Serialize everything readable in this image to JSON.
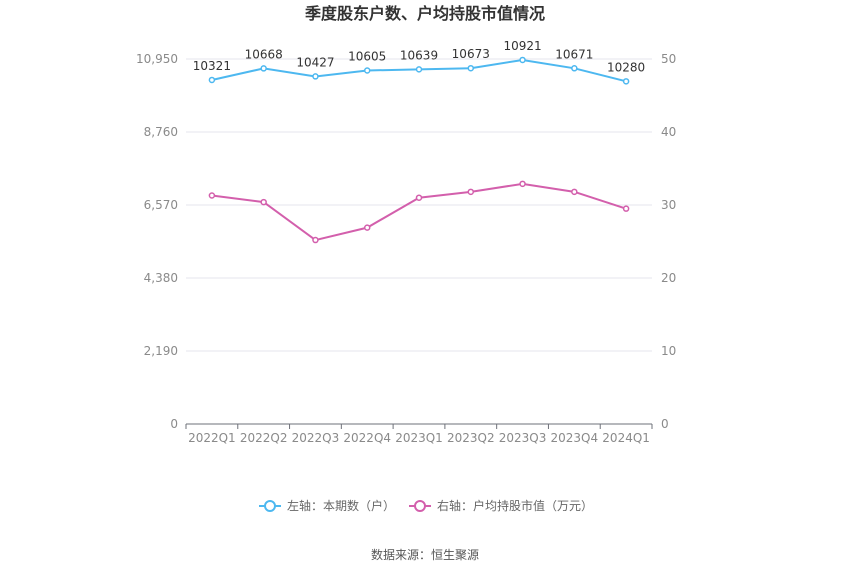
{
  "chart_data": {
    "type": "line",
    "title": "季度股东户数、户均持股市值情况",
    "categories": [
      "2022Q1",
      "2022Q2",
      "2022Q3",
      "2022Q4",
      "2023Q1",
      "2023Q2",
      "2023Q3",
      "2023Q4",
      "2024Q1"
    ],
    "left_axis": {
      "ticks": [
        "0",
        "2,190",
        "4,380",
        "6,570",
        "8,760",
        "10,950"
      ],
      "ylim": [
        0,
        10950
      ]
    },
    "right_axis": {
      "ticks": [
        "0",
        "10",
        "20",
        "30",
        "40",
        "50"
      ],
      "ylim": [
        0,
        50
      ]
    },
    "series": [
      {
        "name": "左轴：本期数（户）",
        "axis": "left",
        "color": "#4db8f0",
        "values": [
          10321,
          10668,
          10427,
          10605,
          10639,
          10673,
          10921,
          10671,
          10280
        ],
        "labels": [
          "10321",
          "10668",
          "10427",
          "10605",
          "10639",
          "10673",
          "10921",
          "10671",
          "10280"
        ]
      },
      {
        "name": "右轴：户均持股市值（万元）",
        "axis": "right",
        "color": "#d35fac",
        "values": [
          31.3,
          30.4,
          25.2,
          26.9,
          31.0,
          31.8,
          32.9,
          31.8,
          29.5
        ]
      }
    ],
    "legend_position": "bottom-center",
    "grid": true,
    "source": "数据来源：恒生聚源"
  }
}
